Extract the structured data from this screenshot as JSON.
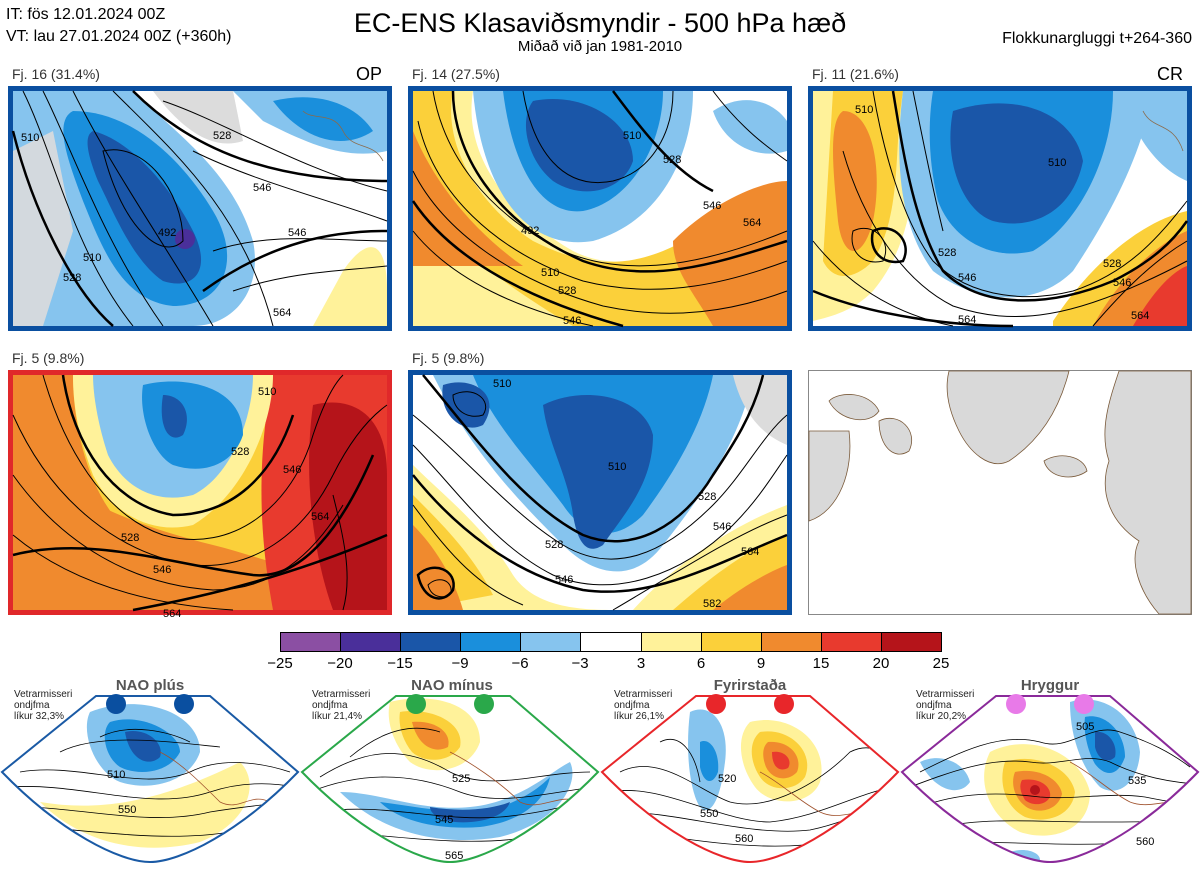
{
  "header": {
    "it_line": "IT: fös 12.01.2024 00Z",
    "vt_line": "VT: lau 27.01.2024 00Z  (+360h)",
    "title": "EC-ENS Klasaviðsmyndir - 500 hPa hæð",
    "subtitle": "Miðað við jan 1981-2010",
    "window": "Flokkunargluggi t+264-360"
  },
  "panels": [
    {
      "label": "Fj. 16 (31.4%)",
      "tag": "OP",
      "border_color": "#0a4fa0",
      "contour_labels": [
        "510",
        "528",
        "546",
        "492",
        "510",
        "528",
        "546",
        "564"
      ]
    },
    {
      "label": "Fj. 14 (27.5%)",
      "tag": "",
      "border_color": "#0a4fa0",
      "contour_labels": [
        "510",
        "528",
        "492",
        "510",
        "528",
        "546",
        "564",
        "546"
      ]
    },
    {
      "label": "Fj. 11 (21.6%)",
      "tag": "CR",
      "border_color": "#0a4fa0",
      "contour_labels": [
        "510",
        "510",
        "528",
        "546",
        "564",
        "564",
        "528",
        "546"
      ]
    },
    {
      "label": "Fj. 5 (9.8%)",
      "tag": "",
      "border_color": "#e0282a",
      "contour_labels": [
        "510",
        "528",
        "546",
        "528",
        "546",
        "564",
        "564"
      ]
    },
    {
      "label": "Fj. 5 (9.8%)",
      "tag": "",
      "border_color": "#0a4fa0",
      "contour_labels": [
        "510",
        "510",
        "528",
        "546",
        "528",
        "546",
        "564",
        "582"
      ]
    }
  ],
  "colorbar": {
    "ticks": [
      "−25",
      "−20",
      "−15",
      "−9",
      "−6",
      "−3",
      "3",
      "6",
      "9",
      "15",
      "20",
      "25"
    ],
    "colors": [
      "#8b4fa3",
      "#4a2f9a",
      "#1a56a8",
      "#1a8fdc",
      "#86c4ee",
      "#ffffff",
      "#fff29a",
      "#fbd03a",
      "#f08a2e",
      "#e83a2e",
      "#b5141a"
    ]
  },
  "regimes": [
    {
      "name": "NAO plús",
      "note": [
        "Vetrarmisseri",
        "ondjfma",
        "líkur 32,3%"
      ],
      "dot_color": "#0a4fa0",
      "frame_color": "#1a5aa5",
      "contour_labels": [
        "510",
        "550"
      ]
    },
    {
      "name": "NAO mínus",
      "note": [
        "Vetrarmisseri",
        "ondjfma",
        "líkur 21,4%"
      ],
      "dot_color": "#2aa84a",
      "frame_color": "#2aa84a",
      "contour_labels": [
        "525",
        "545",
        "565"
      ]
    },
    {
      "name": "Fyrirstaða",
      "note": [
        "Vetrarmisseri",
        "ondjfma",
        "líkur 26,1%"
      ],
      "dot_color": "#e8262a",
      "frame_color": "#e8262a",
      "contour_labels": [
        "520",
        "550",
        "560"
      ]
    },
    {
      "name": "Hryggur",
      "note": [
        "Vetrarmisseri",
        "ondjfma",
        "líkur 20,2%"
      ],
      "dot_color": "#e87ae8",
      "frame_color": "#8a2a9a",
      "contour_labels": [
        "505",
        "535",
        "560"
      ]
    }
  ]
}
